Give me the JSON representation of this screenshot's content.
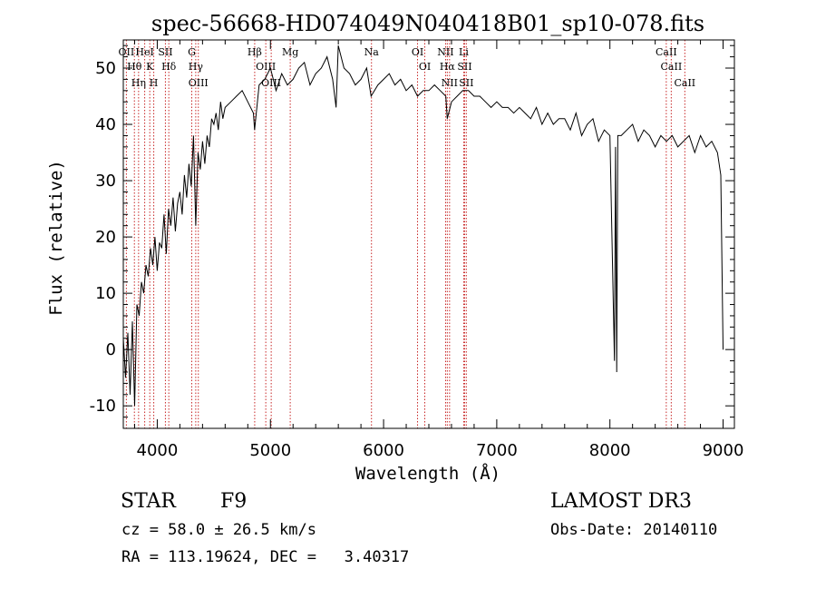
{
  "chart_data": {
    "type": "line",
    "title": "spec-56668-HD074049N040418B01_sp10-078.fits",
    "xlabel": "Wavelength (Å)",
    "ylabel": "Flux (relative)",
    "xlim": [
      3700,
      9100
    ],
    "ylim": [
      -14,
      55
    ],
    "x_ticks": [
      4000,
      5000,
      6000,
      7000,
      8000,
      9000
    ],
    "y_ticks": [
      -10,
      0,
      10,
      20,
      30,
      40,
      50
    ],
    "series": [
      {
        "name": "spectrum",
        "x": [
          3700,
          3720,
          3740,
          3760,
          3780,
          3800,
          3820,
          3840,
          3860,
          3880,
          3900,
          3920,
          3940,
          3960,
          3980,
          4000,
          4020,
          4040,
          4060,
          4080,
          4100,
          4120,
          4140,
          4160,
          4180,
          4200,
          4220,
          4240,
          4260,
          4280,
          4300,
          4320,
          4340,
          4360,
          4380,
          4400,
          4420,
          4440,
          4460,
          4480,
          4500,
          4520,
          4540,
          4560,
          4580,
          4600,
          4650,
          4700,
          4750,
          4800,
          4850,
          4860,
          4900,
          4950,
          5000,
          5050,
          5100,
          5150,
          5200,
          5250,
          5300,
          5350,
          5400,
          5450,
          5500,
          5550,
          5580,
          5600,
          5650,
          5700,
          5750,
          5800,
          5850,
          5890,
          5950,
          6000,
          6050,
          6100,
          6150,
          6200,
          6250,
          6300,
          6350,
          6400,
          6450,
          6500,
          6550,
          6563,
          6600,
          6650,
          6700,
          6750,
          6800,
          6850,
          6900,
          6950,
          7000,
          7050,
          7100,
          7150,
          7200,
          7250,
          7300,
          7350,
          7400,
          7450,
          7500,
          7550,
          7600,
          7650,
          7700,
          7750,
          7800,
          7850,
          7900,
          7950,
          8000,
          8040,
          8050,
          8060,
          8070,
          8100,
          8150,
          8200,
          8250,
          8300,
          8350,
          8400,
          8450,
          8500,
          8550,
          8600,
          8650,
          8700,
          8750,
          8800,
          8850,
          8900,
          8950,
          8980,
          9000
        ],
        "values": [
          2,
          -5,
          3,
          -8,
          5,
          -10,
          8,
          6,
          12,
          10,
          15,
          13,
          18,
          15,
          20,
          14,
          19,
          18,
          24,
          17,
          25,
          22,
          27,
          21,
          26,
          28,
          24,
          31,
          27,
          33,
          29,
          38,
          22,
          35,
          32,
          37,
          33,
          38,
          36,
          41,
          40,
          42,
          39,
          44,
          41,
          43,
          44,
          45,
          46,
          44,
          42,
          39,
          47,
          48,
          50,
          46,
          49,
          47,
          48,
          50,
          51,
          47,
          49,
          50,
          52,
          48,
          43,
          54,
          50,
          49,
          47,
          48,
          50,
          45,
          47,
          48,
          49,
          47,
          48,
          46,
          47,
          45,
          46,
          46,
          47,
          46,
          45,
          41,
          44,
          45,
          46,
          46,
          45,
          45,
          44,
          43,
          44,
          43,
          43,
          42,
          43,
          42,
          41,
          43,
          40,
          42,
          40,
          41,
          41,
          39,
          42,
          38,
          40,
          41,
          37,
          39,
          38,
          -2,
          36,
          -4,
          38,
          38,
          39,
          40,
          37,
          39,
          38,
          36,
          38,
          37,
          38,
          36,
          37,
          38,
          35,
          38,
          36,
          37,
          35,
          31,
          0
        ]
      }
    ],
    "lines": [
      {
        "name": "Hθ",
        "x": 3798
      },
      {
        "name": "OII",
        "x": 3727
      },
      {
        "name": "Hη",
        "x": 3835
      },
      {
        "name": "HeI",
        "x": 3889
      },
      {
        "name": "K",
        "x": 3934
      },
      {
        "name": "H",
        "x": 3969
      },
      {
        "name": "SII",
        "x": 4072
      },
      {
        "name": "Hδ",
        "x": 4102
      },
      {
        "name": "Hγ",
        "x": 4340
      },
      {
        "name": "G",
        "x": 4305
      },
      {
        "name": "OIII",
        "x": 4363
      },
      {
        "name": "Hβ",
        "x": 4861
      },
      {
        "name": "OIII",
        "x": 4959
      },
      {
        "name": "OIII",
        "x": 5007
      },
      {
        "name": "Mg",
        "x": 5175
      },
      {
        "name": "Na",
        "x": 5893
      },
      {
        "name": "OI",
        "x": 6300
      },
      {
        "name": "OI",
        "x": 6364
      },
      {
        "name": "NII",
        "x": 6548
      },
      {
        "name": "Hα",
        "x": 6563
      },
      {
        "name": "NII",
        "x": 6583
      },
      {
        "name": "Li",
        "x": 6708
      },
      {
        "name": "SII",
        "x": 6716
      },
      {
        "name": "SII",
        "x": 6731
      },
      {
        "name": "CaII",
        "x": 8498
      },
      {
        "name": "CaII",
        "x": 8542
      },
      {
        "name": "CaII",
        "x": 8662
      }
    ],
    "line_color": "#c82828",
    "grid": false,
    "legend": "none"
  },
  "info": {
    "class_label": "STAR",
    "subclass": "F9",
    "survey": "LAMOST DR3",
    "cz": "cz = 58.0 ± 26.5 km/s",
    "obs_date": "Obs-Date: 20140110",
    "radec": "RA = 113.19624, DEC =   3.40317"
  }
}
